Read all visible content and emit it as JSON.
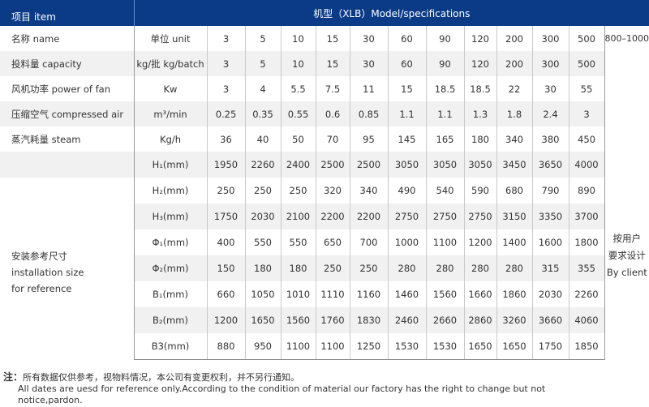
{
  "header": {
    "item": "项目 item",
    "model": "机型（XLB）Model/specifications"
  },
  "rows": [
    {
      "label": "名称 name",
      "unit": "单位 unit",
      "values": [
        "3",
        "5",
        "10",
        "15",
        "30",
        "60",
        "90",
        "120",
        "200",
        "300",
        "500"
      ]
    },
    {
      "label": "投料量 capacity",
      "unit": "kg/批 kg/batch",
      "values": [
        "3",
        "5",
        "10",
        "15",
        "30",
        "60",
        "90",
        "120",
        "200",
        "300",
        "500"
      ]
    },
    {
      "label": "风机功率 power of fan",
      "unit": "Kw",
      "values": [
        "3",
        "4",
        "5.5",
        "7.5",
        "11",
        "15",
        "18.5",
        "18.5",
        "22",
        "30",
        "55"
      ]
    },
    {
      "label": "压缩空气 compressed air",
      "unit": "m³/min",
      "values": [
        "0.25",
        "0.35",
        "0.55",
        "0.6",
        "0.85",
        "1.1",
        "1.1",
        "1.3",
        "1.8",
        "2.4",
        "3"
      ]
    },
    {
      "label": "蒸汽耗量 steam",
      "unit": "Kg/h",
      "values": [
        "36",
        "40",
        "50",
        "70",
        "95",
        "145",
        "165",
        "180",
        "340",
        "380",
        "450"
      ]
    }
  ],
  "last_col": {
    "top": "800–1000",
    "merged": [
      "按用户",
      "要求设计",
      "By client"
    ]
  },
  "installation": {
    "label": [
      "安装参考尺寸",
      "installation size",
      "for reference"
    ],
    "rows": [
      {
        "unit": "H₁(mm)",
        "values": [
          "1950",
          "2260",
          "2400",
          "2500",
          "2500",
          "3050",
          "3050",
          "3050",
          "3450",
          "3650",
          "4000"
        ]
      },
      {
        "unit": "H₂(mm)",
        "values": [
          "250",
          "250",
          "250",
          "320",
          "340",
          "490",
          "540",
          "590",
          "680",
          "790",
          "890"
        ]
      },
      {
        "unit": "H₃(mm)",
        "values": [
          "1750",
          "2030",
          "2100",
          "2200",
          "2200",
          "2750",
          "2750",
          "2750",
          "3150",
          "3350",
          "3700"
        ]
      },
      {
        "unit": "Φ₁(mm)",
        "values": [
          "400",
          "550",
          "550",
          "650",
          "700",
          "1000",
          "1100",
          "1200",
          "1400",
          "1600",
          "1800"
        ]
      },
      {
        "unit": "Φ₂(mm)",
        "values": [
          "150",
          "180",
          "180",
          "250",
          "250",
          "280",
          "280",
          "280",
          "280",
          "315",
          "355"
        ]
      },
      {
        "unit": "B₁(mm)",
        "values": [
          "660",
          "1050",
          "1010",
          "1110",
          "1160",
          "1460",
          "1560",
          "1660",
          "1860",
          "2030",
          "2260"
        ]
      },
      {
        "unit": "B₂(mm)",
        "values": [
          "1200",
          "1650",
          "1560",
          "1760",
          "1830",
          "2460",
          "2660",
          "2860",
          "3260",
          "3660",
          "4060"
        ]
      },
      {
        "unit": "B3(mm)",
        "values": [
          "880",
          "950",
          "1100",
          "1100",
          "1250",
          "1530",
          "1530",
          "1650",
          "1650",
          "1750",
          "1850"
        ]
      }
    ]
  },
  "note": {
    "prefix": "注：",
    "cn": "所有数据仅供参考，视物料情况，本公司有变更权利，并不另行通知。",
    "en1": "All dates are uesd for reference only.According to the condition of material our factory has the right to change but not",
    "en2": "notice,pardon."
  },
  "colors": {
    "header_bg": "#0b3b87",
    "stripe": "#f1f1f1"
  }
}
